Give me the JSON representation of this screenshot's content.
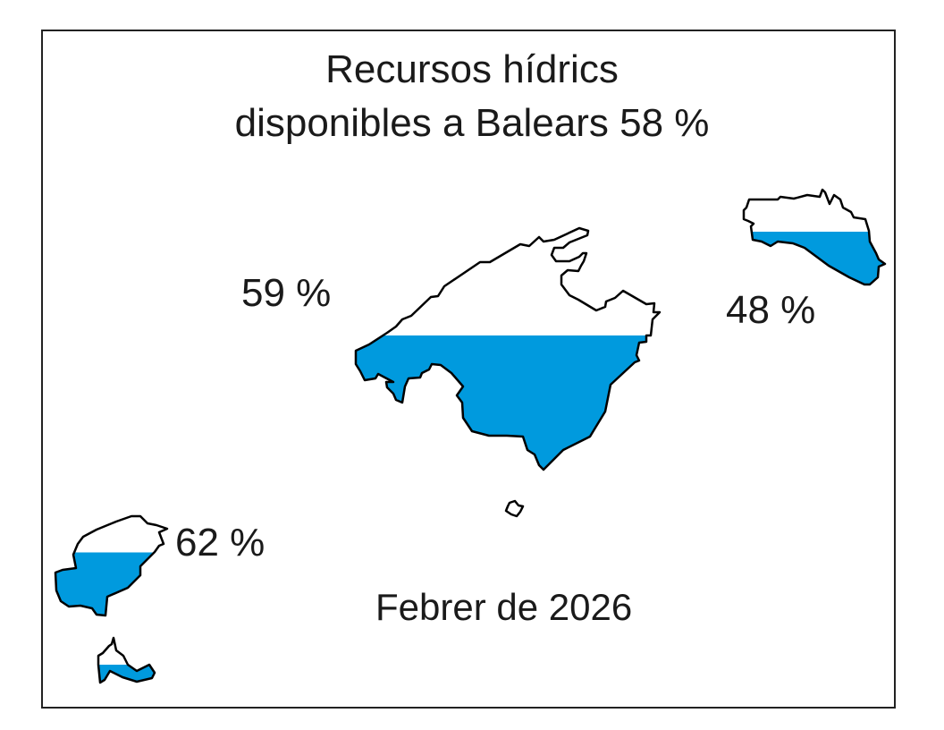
{
  "title": {
    "line1": "Recursos hídrics",
    "line2": "disponibles a Balears 58 %"
  },
  "date_label": "Febrer de 2026",
  "fill_color": "#009ade",
  "outline_color": "#000000",
  "islands": [
    {
      "id": "mallorca",
      "percent": 59,
      "label": "59 %"
    },
    {
      "id": "menorca",
      "percent": 48,
      "label": "48 %"
    },
    {
      "id": "eivissa",
      "percent": 62,
      "label": "62 %"
    },
    {
      "id": "formentera",
      "percent": 62
    },
    {
      "id": "cabrera"
    }
  ]
}
